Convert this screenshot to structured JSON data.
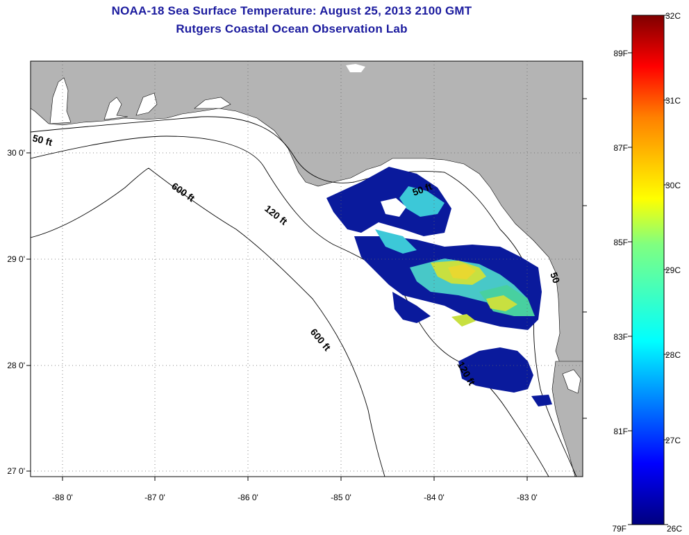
{
  "header": {
    "title": "NOAA-18 Sea Surface Temperature:  August 25, 2013 2100 GMT",
    "subtitle": "Rutgers Coastal Ocean Observation Lab"
  },
  "map": {
    "lon_range": [
      -88.3,
      -82.45
    ],
    "lat_range": [
      26.95,
      30.85
    ],
    "lon_ticks": [
      "-88 0'",
      "-87 0'",
      "-86 0'",
      "-85 0'",
      "-84 0'",
      "-83 0'"
    ],
    "lat_ticks": [
      "30 0'",
      "29 0'",
      "28 0'",
      "27 0'"
    ],
    "contour_labels": {
      "c50": "50 ft",
      "c600a": "600 ft",
      "c120a": "120 ft",
      "c600b": "600 ft",
      "c50b": "50 ft",
      "c120b": "120 ft",
      "c50c": "50"
    },
    "colors": {
      "land": "#b4b4b4",
      "water": "#ffffff"
    }
  },
  "colorbar": {
    "celsius": [
      "32C",
      "31C",
      "30C",
      "29C",
      "28C",
      "27C",
      "26C"
    ],
    "fahrenheit": [
      "89F",
      "87F",
      "85F",
      "83F",
      "81F",
      "79F"
    ],
    "colors": [
      "#00007f",
      "#0000ff",
      "#0080ff",
      "#00ffff",
      "#80ff80",
      "#ffff00",
      "#ff8000",
      "#ff0000",
      "#7f0000"
    ]
  }
}
